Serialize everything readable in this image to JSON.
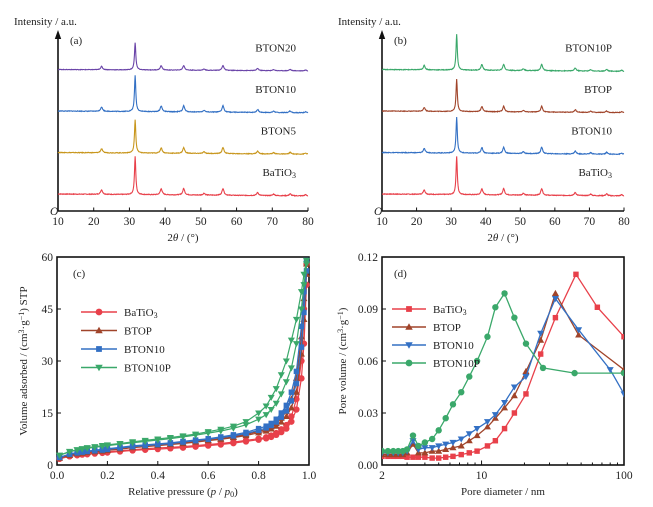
{
  "chart_data": [
    {
      "id": "a",
      "type": "line",
      "panel_label": "(a)",
      "title": "",
      "xlabel": "2θ / (°)",
      "ylabel": "Intensity / a.u.",
      "origin_label": "O",
      "xlim": [
        10,
        80
      ],
      "xticks": [
        10,
        20,
        30,
        40,
        50,
        60,
        70,
        80
      ],
      "peaks_2theta": [
        22.2,
        31.6,
        38.9,
        45.2,
        50.9,
        56.2,
        65.9,
        70.4,
        75.0,
        79.3
      ],
      "peak_heights": [
        0.12,
        1.0,
        0.16,
        0.17,
        0.05,
        0.18,
        0.08,
        0.04,
        0.05,
        0.03
      ],
      "series": [
        {
          "name": "BaTiO3",
          "display": [
            "BaTiO",
            "3"
          ],
          "color": "#e8404a",
          "offset": 0,
          "scale": 1.0
        },
        {
          "name": "BTON5",
          "display": [
            "BTON5",
            ""
          ],
          "color": "#c8961c",
          "offset": 1,
          "scale": 0.88
        },
        {
          "name": "BTON10",
          "display": [
            "BTON10",
            ""
          ],
          "color": "#3370c4",
          "offset": 2,
          "scale": 0.95
        },
        {
          "name": "BTON20",
          "display": [
            "BTON20",
            ""
          ],
          "color": "#6a44a8",
          "offset": 3,
          "scale": 0.72
        }
      ]
    },
    {
      "id": "b",
      "type": "line",
      "panel_label": "(b)",
      "title": "",
      "xlabel": "2θ / (°)",
      "ylabel": "Intensity / a.u.",
      "origin_label": "O",
      "xlim": [
        10,
        80
      ],
      "xticks": [
        10,
        20,
        30,
        40,
        50,
        60,
        70,
        80
      ],
      "peaks_2theta": [
        22.2,
        31.6,
        38.9,
        45.2,
        50.9,
        56.2,
        65.9,
        70.4,
        75.0,
        79.3
      ],
      "peak_heights": [
        0.12,
        1.0,
        0.16,
        0.17,
        0.05,
        0.18,
        0.08,
        0.04,
        0.05,
        0.03
      ],
      "series": [
        {
          "name": "BaTiO3",
          "display": [
            "BaTiO",
            "3"
          ],
          "color": "#e8404a",
          "offset": 0,
          "scale": 1.0
        },
        {
          "name": "BTON10",
          "display": [
            "BTON10",
            ""
          ],
          "color": "#3370c4",
          "offset": 1,
          "scale": 0.95
        },
        {
          "name": "BTOP",
          "display": [
            "BTOP",
            ""
          ],
          "color": "#a0442a",
          "offset": 2,
          "scale": 0.85
        },
        {
          "name": "BTON10P",
          "display": [
            "BTON10P",
            ""
          ],
          "color": "#3aa86a",
          "offset": 3,
          "scale": 0.95
        }
      ]
    },
    {
      "id": "c",
      "type": "line",
      "panel_label": "(c)",
      "title": "",
      "xlabel": "Relative pressure (p / p0)",
      "ylabel": "Volume adsorbed / (cm3·g-1) STP",
      "xlim": [
        0.0,
        1.0
      ],
      "ylim": [
        0,
        60
      ],
      "xticks": [
        0.0,
        0.2,
        0.4,
        0.6,
        0.8,
        1.0
      ],
      "xtick_labels": [
        "0.0",
        "0.2",
        "0.4",
        "0.6",
        "0.8",
        "1.0"
      ],
      "yticks": [
        0,
        15,
        30,
        45,
        60
      ],
      "legend": "upper-left",
      "series": [
        {
          "name": "BaTiO3",
          "display": [
            "BaTiO",
            "3"
          ],
          "color": "#e8404a",
          "marker": "circle",
          "x": [
            0.01,
            0.05,
            0.08,
            0.1,
            0.12,
            0.15,
            0.18,
            0.2,
            0.25,
            0.3,
            0.35,
            0.4,
            0.45,
            0.5,
            0.55,
            0.6,
            0.65,
            0.7,
            0.75,
            0.8,
            0.83,
            0.85,
            0.87,
            0.89,
            0.91,
            0.93,
            0.95,
            0.97,
            0.98,
            0.99
          ],
          "y_ads": [
            1.8,
            2.5,
            2.8,
            3.0,
            3.1,
            3.3,
            3.5,
            3.6,
            3.9,
            4.2,
            4.4,
            4.6,
            4.8,
            5.0,
            5.3,
            5.6,
            5.9,
            6.3,
            6.8,
            7.3,
            7.7,
            8.1,
            8.7,
            9.5,
            10.5,
            12.5,
            16,
            25,
            35,
            52
          ],
          "y_des": [
            1.8,
            2.6,
            2.9,
            3.1,
            3.3,
            3.5,
            3.7,
            3.8,
            4.1,
            4.4,
            4.7,
            4.9,
            5.1,
            5.3,
            5.6,
            5.9,
            6.2,
            6.6,
            7.1,
            7.6,
            8.0,
            8.5,
            9.2,
            10.3,
            11.5,
            14,
            19,
            30,
            45,
            58
          ]
        },
        {
          "name": "BTOP",
          "display": [
            "BTOP",
            ""
          ],
          "color": "#a0442a",
          "marker": "triangle-up",
          "x": [
            0.01,
            0.05,
            0.08,
            0.1,
            0.12,
            0.15,
            0.18,
            0.2,
            0.25,
            0.3,
            0.35,
            0.4,
            0.45,
            0.5,
            0.55,
            0.6,
            0.65,
            0.7,
            0.75,
            0.8,
            0.83,
            0.85,
            0.87,
            0.89,
            0.91,
            0.93,
            0.95,
            0.97,
            0.98,
            0.99
          ],
          "y_ads": [
            2.0,
            2.8,
            3.2,
            3.4,
            3.6,
            3.8,
            4.0,
            4.2,
            4.6,
            5.0,
            5.3,
            5.6,
            5.9,
            6.2,
            6.6,
            7.0,
            7.4,
            7.9,
            8.5,
            9.3,
            9.8,
            10.4,
            11.2,
            12.4,
            14,
            16.5,
            21,
            32,
            42,
            55
          ],
          "y_des": [
            2.0,
            2.9,
            3.3,
            3.5,
            3.7,
            4.0,
            4.2,
            4.4,
            4.8,
            5.2,
            5.5,
            5.8,
            6.1,
            6.4,
            6.8,
            7.2,
            7.6,
            8.1,
            8.8,
            9.7,
            10.3,
            11,
            12,
            13.5,
            15.5,
            19,
            25,
            37,
            48,
            58
          ]
        },
        {
          "name": "BTON10",
          "display": [
            "BTON10",
            ""
          ],
          "color": "#3370c4",
          "marker": "square",
          "x": [
            0.01,
            0.05,
            0.08,
            0.1,
            0.12,
            0.15,
            0.18,
            0.2,
            0.25,
            0.3,
            0.35,
            0.4,
            0.45,
            0.5,
            0.55,
            0.6,
            0.65,
            0.7,
            0.75,
            0.8,
            0.83,
            0.85,
            0.87,
            0.89,
            0.91,
            0.93,
            0.95,
            0.97,
            0.98,
            0.99
          ],
          "y_ads": [
            2.2,
            3.1,
            3.5,
            3.7,
            3.9,
            4.1,
            4.3,
            4.5,
            4.9,
            5.3,
            5.6,
            5.9,
            6.2,
            6.6,
            7.0,
            7.4,
            7.9,
            8.4,
            9.1,
            10.0,
            10.7,
            11.4,
            12.4,
            13.8,
            15.6,
            18.5,
            23.5,
            34,
            44,
            56
          ],
          "y_des": [
            2.2,
            3.2,
            3.6,
            3.8,
            4.0,
            4.3,
            4.5,
            4.7,
            5.1,
            5.5,
            5.8,
            6.1,
            6.4,
            6.8,
            7.2,
            7.6,
            8.1,
            8.7,
            9.4,
            10.5,
            11.2,
            12.0,
            13.2,
            15,
            17.2,
            21,
            27,
            40,
            50,
            59
          ]
        },
        {
          "name": "BTON10P",
          "display": [
            "BTON10P",
            ""
          ],
          "color": "#3aa86a",
          "marker": "triangle-down",
          "x": [
            0.01,
            0.05,
            0.08,
            0.1,
            0.12,
            0.15,
            0.18,
            0.2,
            0.25,
            0.3,
            0.35,
            0.4,
            0.45,
            0.5,
            0.55,
            0.6,
            0.65,
            0.7,
            0.75,
            0.8,
            0.83,
            0.85,
            0.87,
            0.89,
            0.91,
            0.93,
            0.95,
            0.97,
            0.98,
            0.99
          ],
          "y_ads": [
            2.8,
            3.8,
            4.3,
            4.6,
            4.8,
            5.1,
            5.4,
            5.6,
            6.0,
            6.4,
            6.8,
            7.2,
            7.6,
            8.1,
            8.6,
            9.2,
            9.8,
            10.6,
            11.6,
            13.2,
            14.5,
            16,
            17.8,
            20.5,
            24,
            28,
            35,
            45,
            52,
            58
          ],
          "y_des": [
            2.8,
            3.9,
            4.4,
            4.7,
            5.0,
            5.3,
            5.6,
            5.8,
            6.2,
            6.7,
            7.1,
            7.5,
            7.9,
            8.4,
            8.9,
            9.6,
            10.3,
            11.2,
            12.5,
            15,
            17,
            19.5,
            22,
            26,
            30,
            36,
            42,
            50,
            55,
            59
          ]
        }
      ]
    },
    {
      "id": "d",
      "type": "line",
      "panel_label": "(d)",
      "title": "",
      "xlabel": "Pore diameter / nm",
      "ylabel": "Pore volume / (cm3·g-1)",
      "xscale": "log",
      "xlim": [
        2,
        100
      ],
      "ylim": [
        0,
        0.12
      ],
      "xticks": [
        2,
        10,
        100
      ],
      "yticks": [
        0.0,
        0.03,
        0.06,
        0.09,
        0.12
      ],
      "ytick_labels": [
        "0.00",
        "0.03",
        "0.06",
        "0.09",
        "0.12"
      ],
      "legend": "upper-left",
      "series": [
        {
          "name": "BaTiO3",
          "display": [
            "BaTiO",
            "3"
          ],
          "color": "#e8404a",
          "marker": "square",
          "x": [
            2.0,
            2.2,
            2.4,
            2.6,
            2.8,
            3.0,
            3.3,
            3.6,
            4.0,
            4.5,
            5.0,
            5.6,
            6.3,
            7.2,
            8.2,
            9.3,
            11,
            12.5,
            14.5,
            17,
            20.5,
            26,
            33,
            46,
            65,
            100
          ],
          "y": [
            0.005,
            0.005,
            0.005,
            0.005,
            0.005,
            0.0045,
            0.0045,
            0.0045,
            0.0045,
            0.004,
            0.004,
            0.0045,
            0.005,
            0.006,
            0.007,
            0.008,
            0.011,
            0.014,
            0.021,
            0.03,
            0.041,
            0.064,
            0.085,
            0.11,
            0.091,
            0.074
          ]
        },
        {
          "name": "BTOP",
          "display": [
            "BTOP",
            ""
          ],
          "color": "#a0442a",
          "marker": "triangle-up",
          "x": [
            2.0,
            2.2,
            2.4,
            2.6,
            2.8,
            3.0,
            3.3,
            3.6,
            4.0,
            4.5,
            5.0,
            5.6,
            6.3,
            7.2,
            8.2,
            9.3,
            11,
            12.5,
            14.5,
            17,
            20.5,
            26,
            33,
            48,
            100
          ],
          "y": [
            0.006,
            0.006,
            0.006,
            0.006,
            0.006,
            0.007,
            0.012,
            0.007,
            0.007,
            0.008,
            0.008,
            0.009,
            0.01,
            0.011,
            0.014,
            0.017,
            0.022,
            0.027,
            0.033,
            0.04,
            0.054,
            0.072,
            0.099,
            0.075,
            0.055
          ]
        },
        {
          "name": "BTON10",
          "display": [
            "BTON10",
            ""
          ],
          "color": "#3370c4",
          "marker": "triangle-down",
          "x": [
            2.0,
            2.2,
            2.4,
            2.6,
            2.8,
            3.0,
            3.3,
            3.6,
            4.0,
            4.5,
            5.0,
            5.6,
            6.3,
            7.2,
            8.2,
            9.3,
            11,
            12.5,
            14.5,
            17,
            20.5,
            26,
            33,
            48,
            80,
            100
          ],
          "y": [
            0.007,
            0.007,
            0.007,
            0.007,
            0.007,
            0.008,
            0.014,
            0.009,
            0.01,
            0.01,
            0.011,
            0.012,
            0.013,
            0.015,
            0.018,
            0.021,
            0.025,
            0.029,
            0.036,
            0.045,
            0.051,
            0.076,
            0.096,
            0.078,
            0.055,
            0.041
          ]
        },
        {
          "name": "BTON10P",
          "display": [
            "BTON10P",
            ""
          ],
          "color": "#3aa86a",
          "marker": "circle",
          "x": [
            2.0,
            2.2,
            2.4,
            2.6,
            2.8,
            3.0,
            3.3,
            3.6,
            4.0,
            4.5,
            5.0,
            5.6,
            6.3,
            7.2,
            8.2,
            9.3,
            11,
            12.5,
            14.5,
            17,
            20.5,
            27,
            45,
            100
          ],
          "y": [
            0.008,
            0.008,
            0.008,
            0.008,
            0.008,
            0.009,
            0.017,
            0.011,
            0.013,
            0.015,
            0.02,
            0.027,
            0.035,
            0.042,
            0.051,
            0.06,
            0.074,
            0.091,
            0.099,
            0.085,
            0.07,
            0.056,
            0.053,
            0.053
          ]
        }
      ]
    }
  ]
}
